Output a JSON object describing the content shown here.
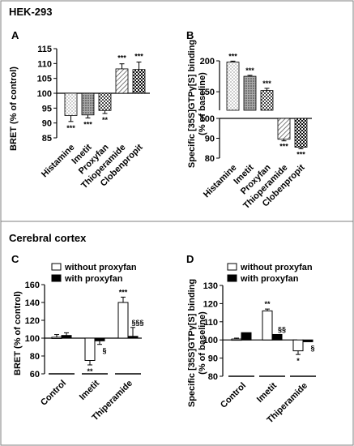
{
  "sections": {
    "top": "HEK-293",
    "bottom": "Cerebral cortex"
  },
  "colors": {
    "stroke": "#000000",
    "open_bar": "#ffffff",
    "solid_bar": "#000000",
    "border": "#7f7f7f"
  },
  "chart_data": [
    {
      "panel": "A",
      "type": "bar",
      "ylabel": "BRET (% of control)",
      "baseline": 100,
      "ylim": [
        85,
        115
      ],
      "yticks": [
        85,
        90,
        95,
        100,
        105,
        110,
        115
      ],
      "categories": [
        "Histamine",
        "Imetit",
        "Proxyfan",
        "Thioperamide",
        "Clobenpropit"
      ],
      "values": [
        92.5,
        92.7,
        94.2,
        108.2,
        108.0
      ],
      "errors": [
        2.0,
        1.0,
        1.0,
        1.7,
        2.5
      ],
      "significance": [
        "***",
        "***",
        "**",
        "***",
        "***"
      ],
      "fills": [
        "dots",
        "dense-dots",
        "checker",
        "hatch",
        "grid"
      ]
    },
    {
      "panel": "B",
      "type": "bar",
      "ylabel_lines": [
        "Specific [35S]GTPγ[S] binding",
        "(% of baseline)"
      ],
      "baseline": 100,
      "broken_axis": true,
      "ylim_upper": [
        120,
        200
      ],
      "yticks_upper": [
        150,
        200
      ],
      "ylim_lower": [
        80,
        100
      ],
      "yticks_lower": [
        80,
        90,
        100
      ],
      "categories": [
        "Histamine",
        "Imetit",
        "Proxyfan",
        "Thioperamide",
        "Clobenpropit"
      ],
      "values": [
        198,
        175,
        152,
        89.5,
        85.5
      ],
      "errors": [
        1.5,
        1.5,
        3.5,
        0.8,
        0.8
      ],
      "significance": [
        "***",
        "***",
        "***",
        "***",
        "***"
      ],
      "fills": [
        "dots",
        "dense-dots",
        "checker",
        "hatch",
        "grid"
      ]
    },
    {
      "panel": "C",
      "type": "bar",
      "ylabel": "BRET (% of control)",
      "baseline": 100,
      "ylim": [
        60,
        160
      ],
      "yticks": [
        60,
        80,
        100,
        120,
        140,
        160
      ],
      "categories": [
        "Control",
        "Imetit",
        "Thiperamide"
      ],
      "series": [
        {
          "name": "without proxyfan",
          "values": [
            101,
            75,
            140
          ],
          "errors": [
            3,
            5,
            6
          ],
          "significance": [
            "",
            "**",
            "***"
          ]
        },
        {
          "name": "with proxyfan",
          "values": [
            103,
            97,
            102
          ],
          "errors": [
            3,
            4,
            10
          ],
          "significance": [
            "",
            "§",
            "§§§"
          ]
        }
      ]
    },
    {
      "panel": "D",
      "type": "bar",
      "ylabel_lines": [
        "Specific [35S]GTPγ[S] binding",
        "(% of baseline)"
      ],
      "baseline": 100,
      "ylim": [
        80,
        130
      ],
      "yticks": [
        80,
        90,
        100,
        110,
        120,
        130
      ],
      "categories": [
        "Control",
        "Imetit",
        "Thiperamide"
      ],
      "series": [
        {
          "name": "without proxyfan",
          "values": [
            100.5,
            116,
            94
          ],
          "errors": [
            0.5,
            1,
            2
          ],
          "significance": [
            "",
            "**",
            "*"
          ]
        },
        {
          "name": "with proxyfan",
          "values": [
            104,
            103,
            99
          ],
          "errors": [
            0,
            0,
            0
          ],
          "significance": [
            "",
            "§§",
            "§"
          ]
        }
      ]
    }
  ]
}
